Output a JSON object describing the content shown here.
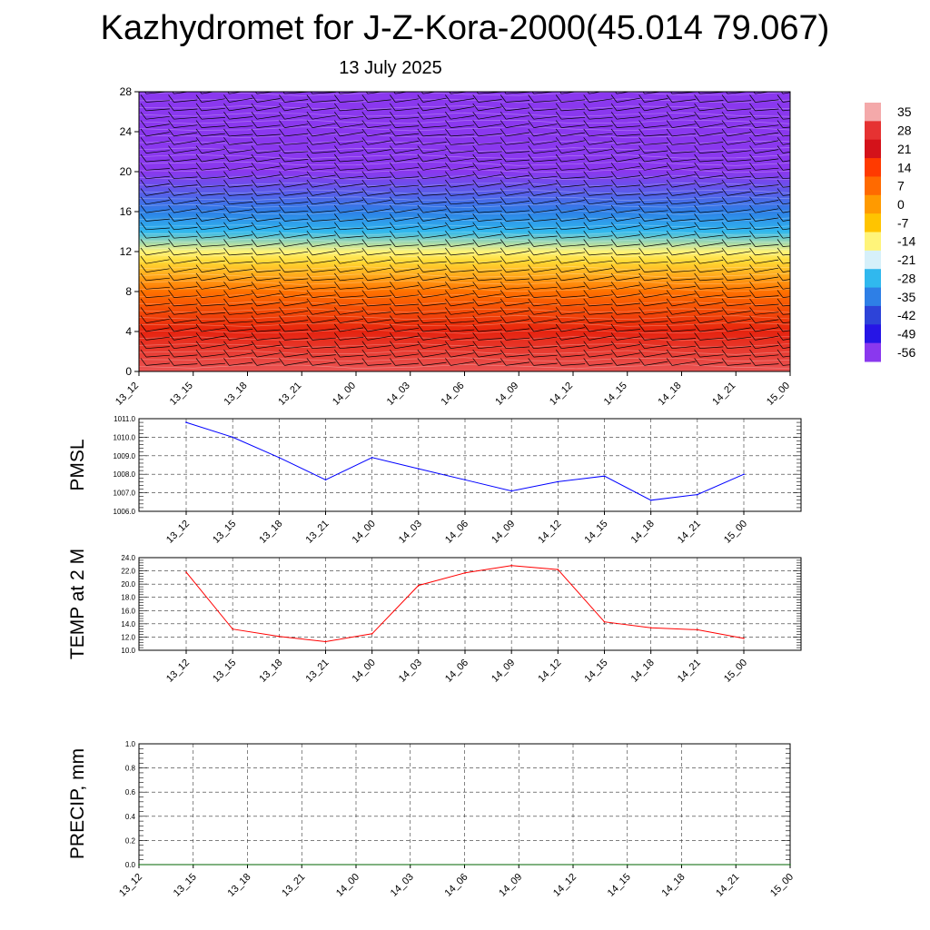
{
  "title": "Kazhydromet for J-Z-Kora-2000(45.014 79.067)",
  "date": "13 July 2025",
  "colorbar": {
    "labels": [
      "35",
      "28",
      "21",
      "14",
      "7",
      "0",
      "-7",
      "-14",
      "-21",
      "-28",
      "-35",
      "-42",
      "-49",
      "-56"
    ],
    "colors": [
      "#f4a9aa",
      "#e63232",
      "#d4121a",
      "#ff3a00",
      "#ff6a00",
      "#ff9a00",
      "#ffc400",
      "#fff47a",
      "#d6f0fa",
      "#30b8ee",
      "#2e7fe6",
      "#2d43d8",
      "#2615e6",
      "#8a38ee"
    ]
  },
  "chart_data": [
    {
      "type": "heatmap",
      "name": "profile",
      "x_categories": [
        "13_12",
        "13_15",
        "13_18",
        "13_21",
        "14_00",
        "14_03",
        "14_06",
        "14_09",
        "14_12",
        "14_15",
        "14_18",
        "14_21",
        "15_00"
      ],
      "ylim": [
        0,
        28
      ],
      "yticks": [
        "0",
        "4",
        "8",
        "12",
        "16",
        "20",
        "24",
        "28"
      ],
      "value_range": [
        -56,
        35
      ],
      "profile_by_level": [
        [
          0,
          30
        ],
        [
          4,
          18
        ],
        [
          8,
          6
        ],
        [
          11,
          -10
        ],
        [
          12,
          -14
        ],
        [
          14,
          -28
        ],
        [
          16,
          -35
        ],
        [
          20,
          -56
        ],
        [
          24,
          -60
        ],
        [
          28,
          -58
        ]
      ]
    },
    {
      "type": "line",
      "ylabel": "PMSL",
      "x_categories": [
        "13_12",
        "13_15",
        "13_18",
        "13_21",
        "14_00",
        "14_03",
        "14_06",
        "14_09",
        "14_12",
        "14_15",
        "14_18",
        "14_21",
        "15_00"
      ],
      "values": [
        1010.8,
        1010.0,
        1008.9,
        1007.7,
        1008.9,
        1008.3,
        1007.7,
        1007.1,
        1007.6,
        1007.9,
        1006.6,
        1006.9,
        1008.0
      ],
      "ylim": [
        1006.0,
        1011.0
      ],
      "yticks": [
        "1006.0",
        "1007.0",
        "1008.0",
        "1009.0",
        "1010.0",
        "1011.0"
      ],
      "color": "#0000ff"
    },
    {
      "type": "line",
      "ylabel": "TEMP at 2 M",
      "x_categories": [
        "13_12",
        "13_15",
        "13_18",
        "13_21",
        "14_00",
        "14_03",
        "14_06",
        "14_09",
        "14_12",
        "14_15",
        "14_18",
        "14_21",
        "15_00"
      ],
      "values": [
        21.8,
        13.2,
        12.1,
        11.3,
        12.5,
        19.8,
        21.7,
        22.8,
        22.2,
        14.3,
        13.4,
        13.1,
        11.8
      ],
      "ylim": [
        10.0,
        24.0
      ],
      "yticks": [
        "10.0",
        "12.0",
        "14.0",
        "16.0",
        "18.0",
        "20.0",
        "22.0",
        "24.0"
      ],
      "color": "#ff0000"
    },
    {
      "type": "line",
      "ylabel": "PRECIP, mm",
      "x_categories": [
        "13_12",
        "13_15",
        "13_18",
        "13_21",
        "14_00",
        "14_03",
        "14_06",
        "14_09",
        "14_12",
        "14_15",
        "14_18",
        "14_21",
        "15_00"
      ],
      "values": [
        0,
        0,
        0,
        0,
        0,
        0,
        0,
        0,
        0,
        0,
        0,
        0,
        0
      ],
      "ylim": [
        0,
        1.0
      ],
      "yticks": [
        "0.0",
        "0.2",
        "0.4",
        "0.6",
        "0.8",
        "1.0"
      ],
      "color": "#006400"
    }
  ]
}
